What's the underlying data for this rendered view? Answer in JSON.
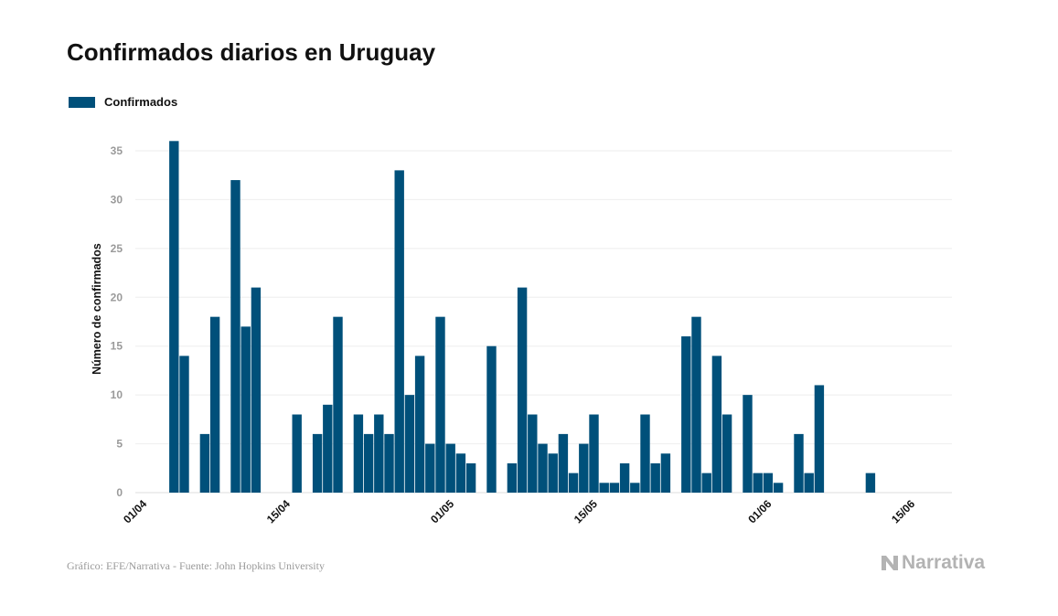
{
  "header": {
    "title": "Confirmados diarios en Uruguay"
  },
  "footer": {
    "credit": "Gráfico: EFE/Narrativa - Fuente: John Hopkins University",
    "brand": "Narrativa",
    "brand_icon": "narrativa-logo-icon"
  },
  "chart_data": {
    "type": "bar",
    "title": "Confirmados diarios en Uruguay",
    "xlabel": "",
    "ylabel": "Número de confirmados",
    "ylim": [
      0,
      37
    ],
    "yticks": [
      0,
      5,
      10,
      15,
      20,
      25,
      30,
      35
    ],
    "grid": true,
    "legend_position": "top-left",
    "color": "#00507a",
    "x_ticks": [
      "01/04",
      "15/04",
      "01/05",
      "15/05",
      "01/06",
      "15/06"
    ],
    "series": [
      {
        "name": "Confirmados",
        "categories": [
          "01/04",
          "02/04",
          "03/04",
          "04/04",
          "05/04",
          "06/04",
          "07/04",
          "08/04",
          "09/04",
          "10/04",
          "11/04",
          "12/04",
          "13/04",
          "14/04",
          "15/04",
          "16/04",
          "17/04",
          "18/04",
          "19/04",
          "20/04",
          "21/04",
          "22/04",
          "23/04",
          "24/04",
          "25/04",
          "26/04",
          "27/04",
          "28/04",
          "29/04",
          "30/04",
          "01/05",
          "02/05",
          "03/05",
          "04/05",
          "05/05",
          "06/05",
          "07/05",
          "08/05",
          "09/05",
          "10/05",
          "11/05",
          "12/05",
          "13/05",
          "14/05",
          "15/05",
          "16/05",
          "17/05",
          "18/05",
          "19/05",
          "20/05",
          "21/05",
          "22/05",
          "23/05",
          "24/05",
          "25/05",
          "26/05",
          "27/05",
          "28/05",
          "29/05",
          "30/05",
          "31/05",
          "01/06",
          "02/06",
          "03/06",
          "04/06",
          "05/06",
          "06/06",
          "07/06",
          "08/06",
          "09/06",
          "10/06",
          "11/06",
          "12/06",
          "13/06",
          "14/06",
          "15/06",
          "16/06"
        ],
        "values": [
          0,
          0,
          0,
          36,
          14,
          0,
          6,
          18,
          0,
          32,
          17,
          21,
          0,
          0,
          0,
          8,
          0,
          6,
          9,
          18,
          0,
          8,
          6,
          8,
          6,
          33,
          10,
          14,
          5,
          18,
          5,
          4,
          3,
          0,
          15,
          0,
          3,
          21,
          8,
          5,
          4,
          6,
          2,
          5,
          8,
          1,
          1,
          3,
          1,
          8,
          3,
          4,
          0,
          16,
          18,
          2,
          14,
          8,
          0,
          10,
          2,
          2,
          1,
          0,
          6,
          2,
          11,
          0,
          0,
          0,
          0,
          2,
          0,
          0,
          0,
          0,
          0
        ]
      }
    ]
  }
}
